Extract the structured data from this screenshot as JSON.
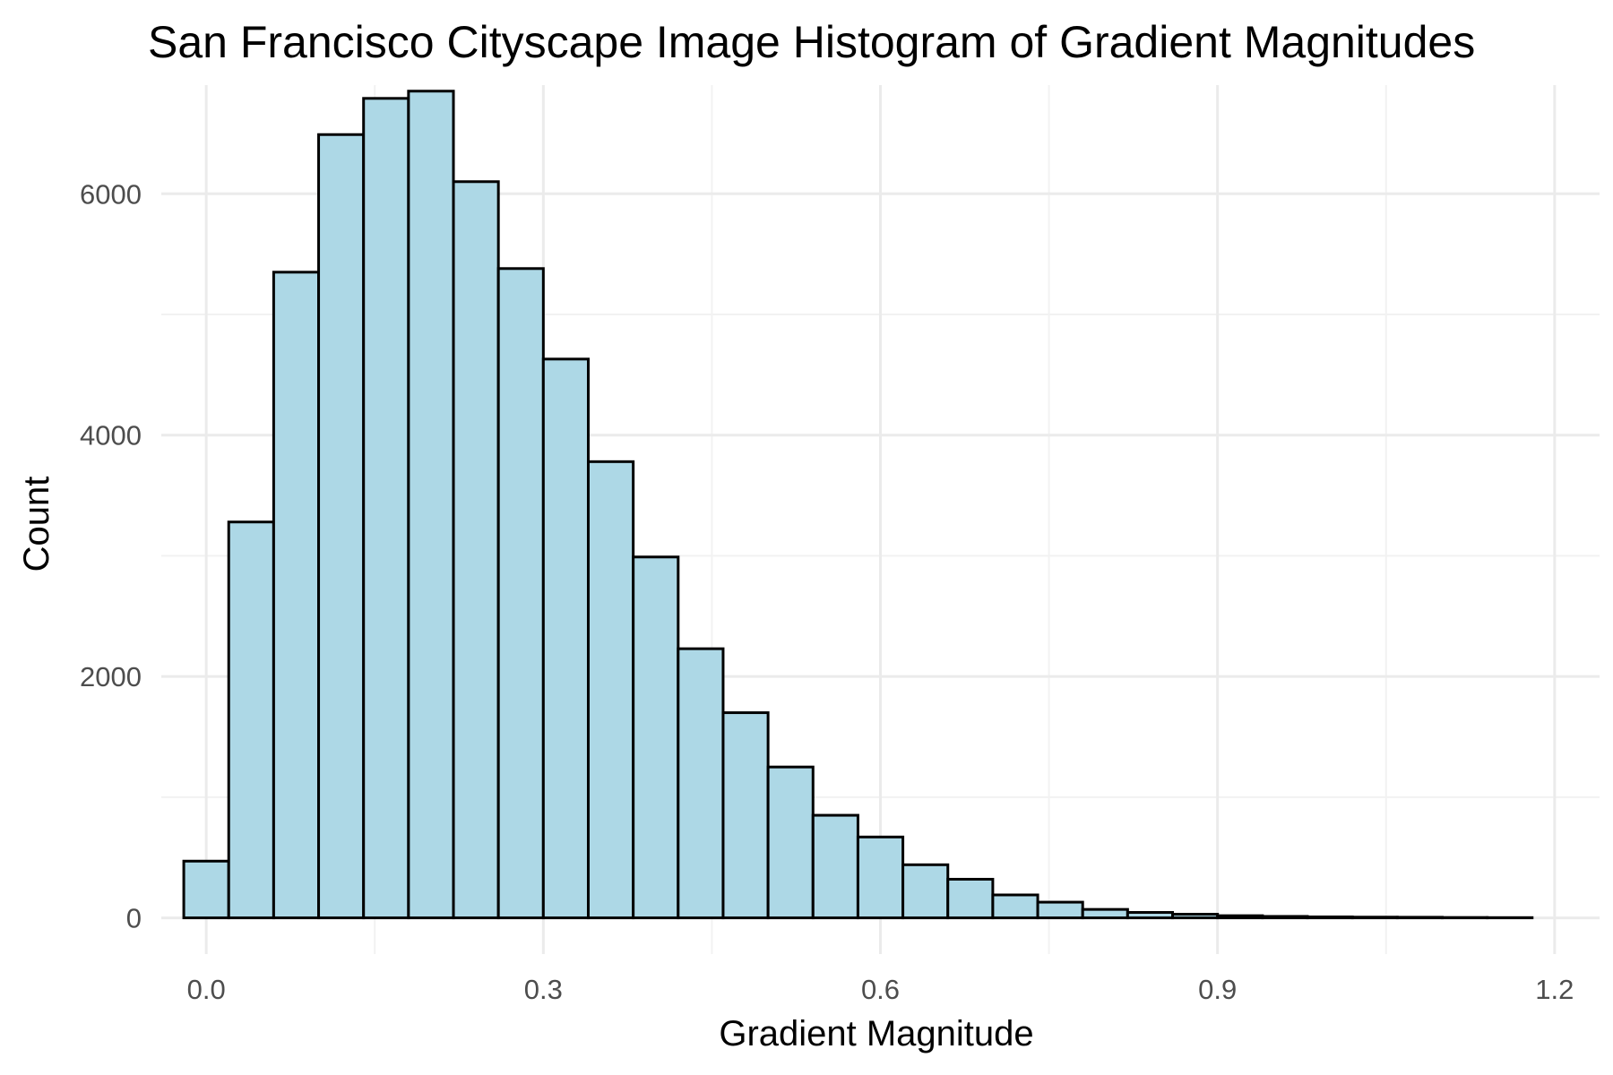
{
  "chart_data": {
    "type": "bar",
    "title": "San Francisco Cityscape Image Histogram of Gradient Magnitudes",
    "xlabel": "Gradient Magnitude",
    "ylabel": "Count",
    "xlim": [
      -0.04,
      1.24
    ],
    "ylim": [
      -300,
      6900
    ],
    "x_ticks": [
      0.0,
      0.3,
      0.6,
      0.9,
      1.2
    ],
    "x_tick_labels": [
      "0.0",
      "0.3",
      "0.6",
      "0.9",
      "1.2"
    ],
    "y_ticks": [
      0,
      2000,
      4000,
      6000
    ],
    "y_tick_labels": [
      "0",
      "2000",
      "4000",
      "6000"
    ],
    "grid": true,
    "bar_fill": "#add8e6",
    "bar_outline": "#000000",
    "bin_width": 0.04,
    "bin_centers": [
      0.0,
      0.04,
      0.08,
      0.12,
      0.16,
      0.2,
      0.24,
      0.28,
      0.32,
      0.36,
      0.4,
      0.44,
      0.48,
      0.52,
      0.56,
      0.6,
      0.64,
      0.68,
      0.72,
      0.76,
      0.8,
      0.84,
      0.88,
      0.92,
      0.96,
      1.0,
      1.04,
      1.08,
      1.12,
      1.16
    ],
    "values": [
      470,
      3280,
      5350,
      6490,
      6790,
      6850,
      6100,
      5380,
      4630,
      3780,
      2990,
      2230,
      1700,
      1250,
      850,
      670,
      440,
      320,
      190,
      130,
      70,
      45,
      30,
      18,
      12,
      8,
      6,
      5,
      3,
      2
    ]
  }
}
